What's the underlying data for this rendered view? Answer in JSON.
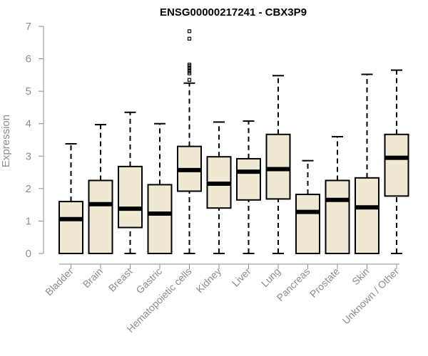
{
  "chart_data": {
    "type": "boxplot",
    "title": "ENSG00000217241 - CBX3P9",
    "xlabel": "",
    "ylabel": "Expression",
    "ylim": [
      0,
      7
    ],
    "yticks": [
      0,
      1,
      2,
      3,
      4,
      5,
      6,
      7
    ],
    "box_fill": "#efe8d2",
    "categories": [
      "Bladder",
      "Brain",
      "Breast",
      "Gastric",
      "Hematopoietic cells",
      "Kidney",
      "Liver",
      "Lung",
      "Pancreas",
      "Prostate",
      "Skin",
      "Unknown / Other"
    ],
    "boxes": [
      {
        "min": 0,
        "q1": 0,
        "median": 1.06,
        "q3": 1.6,
        "max": 3.38,
        "outliers": []
      },
      {
        "min": 0,
        "q1": 0,
        "median": 1.52,
        "q3": 2.25,
        "max": 3.97,
        "outliers": []
      },
      {
        "min": 0,
        "q1": 0.8,
        "median": 1.38,
        "q3": 2.68,
        "max": 4.35,
        "outliers": []
      },
      {
        "min": 0,
        "q1": 0,
        "median": 1.23,
        "q3": 2.12,
        "max": 4.0,
        "outliers": []
      },
      {
        "min": 0,
        "q1": 1.92,
        "median": 2.57,
        "q3": 3.3,
        "max": 5.25,
        "outliers": [
          5.35,
          5.55,
          5.6,
          5.65,
          5.72,
          5.78,
          5.82,
          6.62,
          6.85
        ]
      },
      {
        "min": 0,
        "q1": 1.4,
        "median": 2.15,
        "q3": 2.98,
        "max": 4.05,
        "outliers": []
      },
      {
        "min": 0,
        "q1": 1.65,
        "median": 2.52,
        "q3": 2.92,
        "max": 4.08,
        "outliers": []
      },
      {
        "min": 0,
        "q1": 1.68,
        "median": 2.6,
        "q3": 3.67,
        "max": 5.48,
        "outliers": []
      },
      {
        "min": 0,
        "q1": 0,
        "median": 1.28,
        "q3": 1.82,
        "max": 2.86,
        "outliers": []
      },
      {
        "min": 0,
        "q1": 0,
        "median": 1.65,
        "q3": 2.25,
        "max": 3.6,
        "outliers": []
      },
      {
        "min": 0,
        "q1": 0,
        "median": 1.42,
        "q3": 2.33,
        "max": 5.52,
        "outliers": []
      },
      {
        "min": 0,
        "q1": 1.77,
        "median": 2.95,
        "q3": 3.67,
        "max": 5.65,
        "outliers": []
      }
    ]
  }
}
